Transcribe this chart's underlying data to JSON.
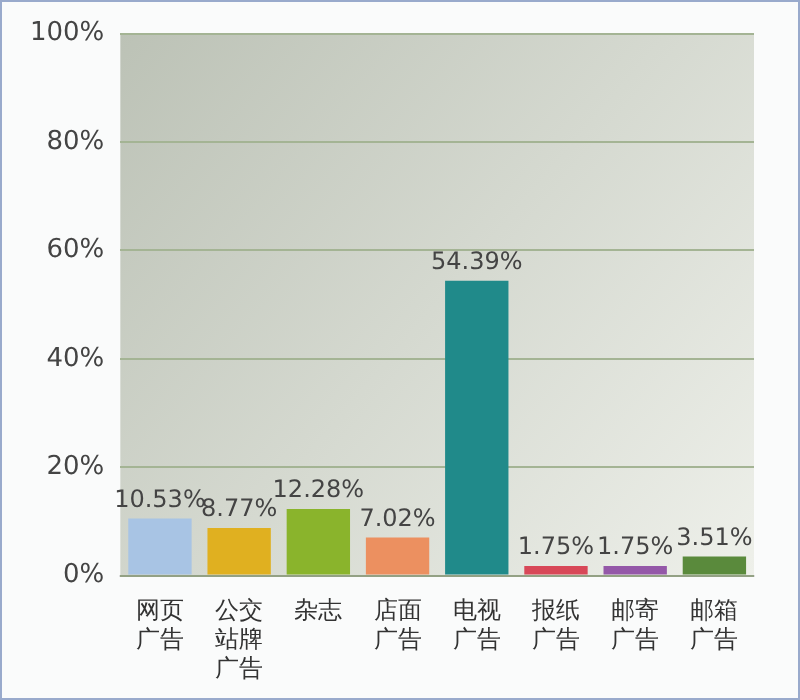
{
  "chart_data": {
    "type": "bar",
    "categories": [
      "网页广告",
      "公交站牌广告",
      "杂志",
      "店面广告",
      "电视广告",
      "报纸广告",
      "邮寄广告",
      "邮箱广告"
    ],
    "values": [
      10.53,
      8.77,
      12.28,
      7.02,
      54.39,
      1.75,
      1.75,
      3.51
    ],
    "value_labels": [
      "10.53%",
      "8.77%",
      "12.28%",
      "7.02%",
      "54.39%",
      "1.75%",
      "1.75%",
      "3.51%"
    ],
    "colors": [
      "#a8c4e4",
      "#e0b020",
      "#8ab42c",
      "#ec9060",
      "#208a8a",
      "#d84858",
      "#9458a8",
      "#5a8a3c"
    ],
    "ylim": [
      0,
      100
    ],
    "yticks": [
      {
        "value": 0,
        "label": "0%"
      },
      {
        "value": 20,
        "label": "20%"
      },
      {
        "value": 40,
        "label": "40%"
      },
      {
        "value": 60,
        "label": "60%"
      },
      {
        "value": 80,
        "label": "80%"
      },
      {
        "value": 100,
        "label": "100%"
      }
    ],
    "grid": "y",
    "legend": false
  }
}
